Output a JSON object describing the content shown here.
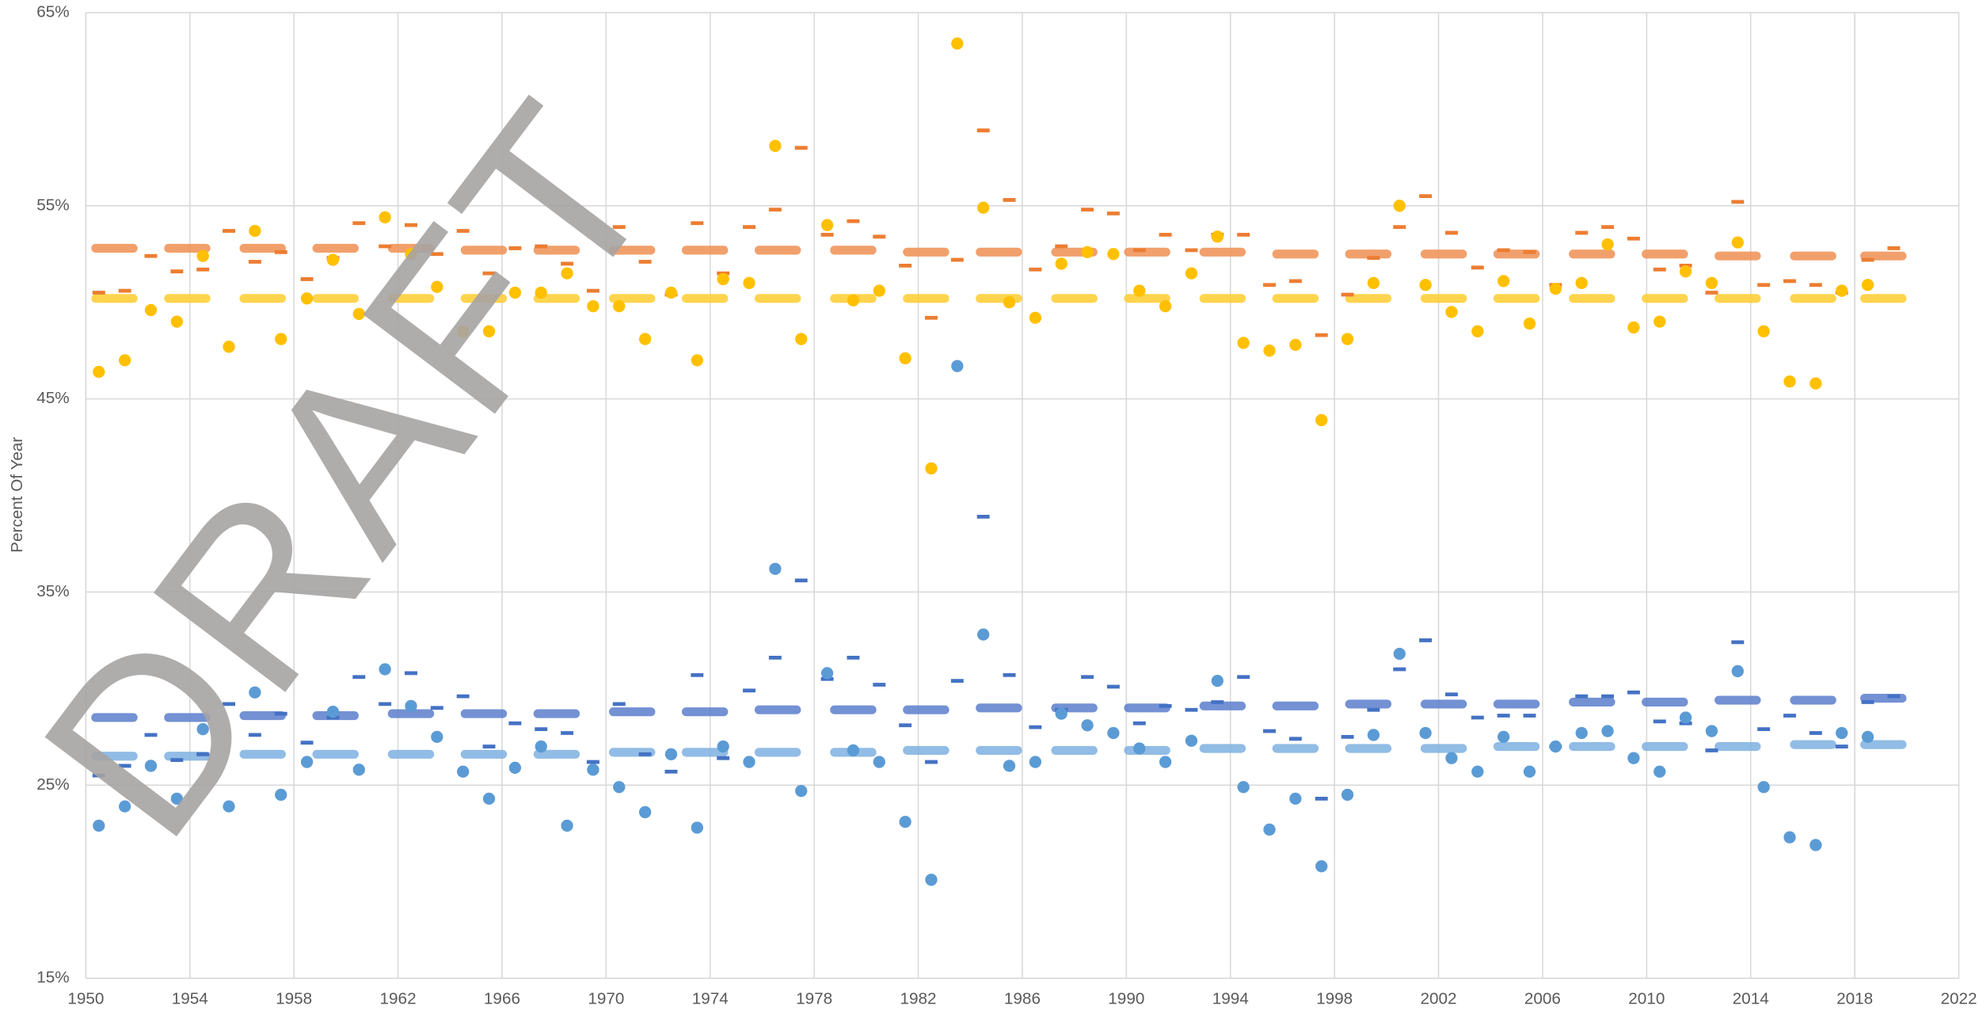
{
  "chart_data": {
    "type": "scatter",
    "y_label": "Percent Of Year",
    "watermark": "DRAFT",
    "grid": true,
    "xlim": [
      1950,
      2022
    ],
    "xticks": [
      1950,
      1954,
      1958,
      1962,
      1966,
      1970,
      1974,
      1978,
      1982,
      1986,
      1990,
      1994,
      1998,
      2002,
      2006,
      2010,
      2014,
      2018,
      2022
    ],
    "ylim": [
      15,
      65
    ],
    "yticks": [
      {
        "value": 15,
        "label": "15%"
      },
      {
        "value": 25,
        "label": "25%"
      },
      {
        "value": 35,
        "label": "35%"
      },
      {
        "value": 45,
        "label": "45%"
      },
      {
        "value": 55,
        "label": "55%"
      },
      {
        "value": 65,
        "label": "65%"
      }
    ],
    "x": [
      1950.5,
      1951.5,
      1952.5,
      1953.5,
      1954.5,
      1955.5,
      1956.5,
      1957.5,
      1958.5,
      1959.5,
      1960.5,
      1961.5,
      1962.5,
      1963.5,
      1964.5,
      1965.5,
      1966.5,
      1967.5,
      1968.5,
      1969.5,
      1970.5,
      1971.5,
      1972.5,
      1973.5,
      1974.5,
      1975.5,
      1976.5,
      1977.5,
      1978.5,
      1979.5,
      1980.5,
      1981.5,
      1982.5,
      1983.5,
      1984.5,
      1985.5,
      1986.5,
      1987.5,
      1988.5,
      1989.5,
      1990.5,
      1991.5,
      1992.5,
      1993.5,
      1994.5,
      1995.5,
      1996.5,
      1997.5,
      1998.5,
      1999.5,
      2000.5,
      2001.5,
      2002.5,
      2003.5,
      2004.5,
      2005.5,
      2006.5,
      2007.5,
      2008.5,
      2009.5,
      2010.5,
      2011.5,
      2012.5,
      2013.5,
      2014.5,
      2015.5,
      2016.5,
      2017.5,
      2018.5,
      2019.5
    ],
    "series": [
      {
        "marker": "wide-dash",
        "color": "#ef8f52",
        "x": [
          1951.1,
          1953.9,
          1956.8,
          1959.6,
          1962.5,
          1965.3,
          1968.1,
          1971.0,
          1973.8,
          1976.6,
          1979.5,
          1982.3,
          1985.1,
          1988.0,
          1990.8,
          1993.7,
          1996.5,
          1999.3,
          2002.2,
          2005.0,
          2007.9,
          2010.7,
          2013.5,
          2016.4,
          2019.1
        ],
        "values": [
          52.8,
          52.8,
          52.8,
          52.8,
          52.8,
          52.7,
          52.7,
          52.7,
          52.7,
          52.7,
          52.7,
          52.6,
          52.6,
          52.6,
          52.6,
          52.6,
          52.5,
          52.5,
          52.5,
          52.5,
          52.5,
          52.5,
          52.4,
          52.4,
          52.4
        ]
      },
      {
        "marker": "wide-dash",
        "color": "#ffcc2e",
        "x": [
          1951.1,
          1953.9,
          1956.8,
          1959.6,
          1962.5,
          1965.3,
          1968.1,
          1971.0,
          1973.8,
          1976.6,
          1979.5,
          1982.3,
          1985.1,
          1988.0,
          1990.8,
          1993.7,
          1996.5,
          1999.3,
          2002.2,
          2005.0,
          2007.9,
          2010.7,
          2013.5,
          2016.4,
          2019.1
        ],
        "values": [
          50.2,
          50.2,
          50.2,
          50.2,
          50.2,
          50.2,
          50.2,
          50.2,
          50.2,
          50.2,
          50.2,
          50.2,
          50.2,
          50.2,
          50.2,
          50.2,
          50.2,
          50.2,
          50.2,
          50.2,
          50.2,
          50.2,
          50.2,
          50.2,
          50.2
        ]
      },
      {
        "marker": "wide-dash",
        "color": "#5a7ecb",
        "x": [
          1951.1,
          1953.9,
          1956.8,
          1959.6,
          1962.5,
          1965.3,
          1968.1,
          1971.0,
          1973.8,
          1976.6,
          1979.5,
          1982.3,
          1985.1,
          1988.0,
          1990.8,
          1993.7,
          1996.5,
          1999.3,
          2002.2,
          2005.0,
          2007.9,
          2010.7,
          2013.5,
          2016.4,
          2019.1
        ],
        "values": [
          28.5,
          28.5,
          28.6,
          28.6,
          28.7,
          28.7,
          28.7,
          28.8,
          28.8,
          28.9,
          28.9,
          28.9,
          29.0,
          29.0,
          29.0,
          29.1,
          29.1,
          29.2,
          29.2,
          29.2,
          29.3,
          29.3,
          29.4,
          29.4,
          29.5
        ]
      },
      {
        "marker": "wide-dash",
        "color": "#7eb0e0",
        "x": [
          1951.1,
          1953.9,
          1956.8,
          1959.6,
          1962.5,
          1965.3,
          1968.1,
          1971.0,
          1973.8,
          1976.6,
          1979.5,
          1982.3,
          1985.1,
          1988.0,
          1990.8,
          1993.7,
          1996.5,
          1999.3,
          2002.2,
          2005.0,
          2007.9,
          2010.7,
          2013.5,
          2016.4,
          2019.1
        ],
        "values": [
          26.5,
          26.5,
          26.6,
          26.6,
          26.6,
          26.6,
          26.6,
          26.7,
          26.7,
          26.7,
          26.7,
          26.8,
          26.8,
          26.8,
          26.8,
          26.9,
          26.9,
          26.9,
          26.9,
          27.0,
          27.0,
          27.0,
          27.0,
          27.1,
          27.1
        ]
      },
      {
        "marker": "dash",
        "color": "#ed7d31",
        "values": [
          50.5,
          50.6,
          52.4,
          51.6,
          51.7,
          53.7,
          52.1,
          52.6,
          51.2,
          52.3,
          54.1,
          52.9,
          54.0,
          52.5,
          53.7,
          51.5,
          52.8,
          52.9,
          52.0,
          50.6,
          53.9,
          52.1,
          50.4,
          54.1,
          51.5,
          53.9,
          54.8,
          58.0,
          53.5,
          54.2,
          53.4,
          51.9,
          49.2,
          52.2,
          58.9,
          55.3,
          51.7,
          52.9,
          54.8,
          54.6,
          52.7,
          53.5,
          52.7,
          53.5,
          53.5,
          50.9,
          51.1,
          48.3,
          50.4,
          52.3,
          53.9,
          55.5,
          53.6,
          51.8,
          52.7,
          52.6,
          50.9,
          53.6,
          53.9,
          53.3,
          51.7,
          51.9,
          50.5,
          55.2,
          50.9,
          51.1,
          50.9,
          50.5,
          52.2,
          52.8
        ]
      },
      {
        "marker": "dash",
        "color": "#4472c4",
        "values": [
          25.5,
          26.0,
          27.6,
          26.3,
          26.6,
          29.2,
          27.6,
          28.7,
          27.2,
          28.5,
          30.6,
          29.2,
          30.8,
          29.0,
          29.6,
          27.0,
          28.2,
          27.9,
          27.7,
          26.2,
          29.2,
          26.6,
          25.7,
          30.7,
          26.4,
          29.9,
          31.6,
          35.6,
          30.5,
          31.6,
          30.2,
          28.1,
          26.2,
          30.4,
          38.9,
          30.7,
          28.0,
          28.9,
          30.6,
          30.1,
          28.2,
          29.1,
          28.9,
          29.3,
          30.6,
          27.8,
          27.4,
          24.3,
          27.5,
          28.9,
          31.0,
          32.5,
          29.7,
          28.5,
          28.6,
          28.6,
          27.0,
          29.6,
          29.6,
          29.8,
          28.3,
          28.2,
          26.8,
          32.4,
          27.9,
          28.6,
          27.7,
          27.0,
          29.3,
          29.6
        ]
      },
      {
        "marker": "circle",
        "color": "#ffc000",
        "values": [
          46.4,
          47.0,
          49.6,
          49.0,
          52.4,
          47.7,
          53.7,
          48.1,
          50.2,
          52.2,
          49.4,
          54.4,
          52.5,
          50.8,
          48.5,
          48.5,
          50.5,
          50.5,
          51.5,
          49.8,
          49.8,
          48.1,
          50.5,
          47.0,
          51.2,
          51.0,
          58.1,
          48.1,
          54.0,
          50.1,
          50.6,
          47.1,
          41.4,
          63.4,
          54.9,
          50.0,
          49.2,
          52.0,
          52.6,
          52.5,
          50.6,
          49.8,
          51.5,
          53.4,
          47.9,
          47.5,
          47.8,
          43.9,
          48.1,
          51.0,
          55.0,
          50.9,
          49.5,
          48.5,
          51.1,
          48.9,
          50.7,
          51.0,
          53.0,
          48.7,
          49.0,
          51.6,
          51.0,
          53.1,
          48.5,
          45.9,
          45.8,
          50.6,
          50.9,
          null
        ]
      },
      {
        "marker": "circle",
        "color": "#5b9bd5",
        "values": [
          22.9,
          23.9,
          26.0,
          24.3,
          27.9,
          23.9,
          29.8,
          24.5,
          26.2,
          28.8,
          25.8,
          31.0,
          29.1,
          27.5,
          25.7,
          24.3,
          25.9,
          27.0,
          22.9,
          25.8,
          24.9,
          23.6,
          26.6,
          22.8,
          27.0,
          26.2,
          36.2,
          24.7,
          30.8,
          26.8,
          26.2,
          23.1,
          20.1,
          46.7,
          32.8,
          26.0,
          26.2,
          28.7,
          28.1,
          27.7,
          26.9,
          26.2,
          27.3,
          30.4,
          24.9,
          22.7,
          24.3,
          20.8,
          24.5,
          27.6,
          31.8,
          27.7,
          26.4,
          25.7,
          27.5,
          25.7,
          27.0,
          27.7,
          27.8,
          26.4,
          25.7,
          28.5,
          27.8,
          30.9,
          24.9,
          22.3,
          21.9,
          27.7,
          27.5,
          null
        ]
      }
    ]
  }
}
